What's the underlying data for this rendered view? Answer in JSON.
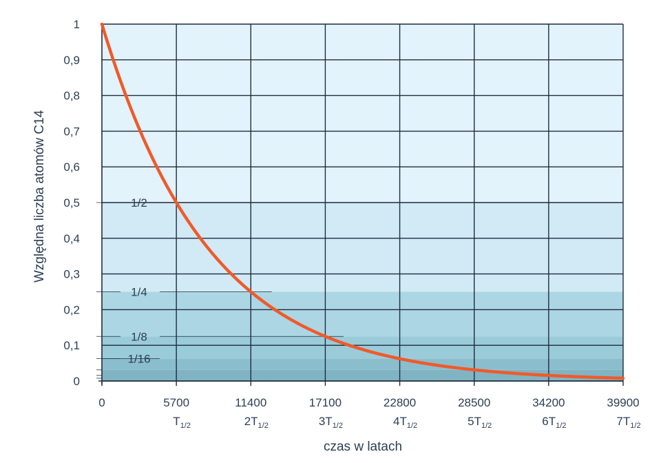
{
  "chart_data": {
    "type": "line",
    "xlabel": "czas w latach",
    "ylabel": "Względna liczba atomów C14",
    "xlim": [
      0,
      39900
    ],
    "ylim": [
      0,
      1
    ],
    "grid": true,
    "x_ticks": [
      {
        "value": 0,
        "label": "0",
        "sub_main": "",
        "sub_index": ""
      },
      {
        "value": 5700,
        "label": "5700",
        "sub_main": "T",
        "sub_index": "1/2"
      },
      {
        "value": 11400,
        "label": "11400",
        "sub_main": "2T",
        "sub_index": "1/2"
      },
      {
        "value": 17100,
        "label": "17100",
        "sub_main": "3T",
        "sub_index": "1/2"
      },
      {
        "value": 22800,
        "label": "22800",
        "sub_main": "4T",
        "sub_index": "1/2"
      },
      {
        "value": 28500,
        "label": "28500",
        "sub_main": "5T",
        "sub_index": "1/2"
      },
      {
        "value": 34200,
        "label": "34200",
        "sub_main": "6T",
        "sub_index": "1/2"
      },
      {
        "value": 39900,
        "label": "39900",
        "sub_main": "7T",
        "sub_index": "1/2"
      }
    ],
    "y_ticks": [
      {
        "value": 0,
        "label": "0"
      },
      {
        "value": 0.1,
        "label": "0,1"
      },
      {
        "value": 0.2,
        "label": "0,2"
      },
      {
        "value": 0.3,
        "label": "0,3"
      },
      {
        "value": 0.4,
        "label": "0,4"
      },
      {
        "value": 0.5,
        "label": "0,5"
      },
      {
        "value": 0.6,
        "label": "0,6"
      },
      {
        "value": 0.7,
        "label": "0,7"
      },
      {
        "value": 0.8,
        "label": "0,8"
      },
      {
        "value": 0.9,
        "label": "0,9"
      },
      {
        "value": 1,
        "label": "1"
      }
    ],
    "fraction_annotations": [
      {
        "value": 0.5,
        "label": "1/2",
        "x_end": 5700
      },
      {
        "value": 0.25,
        "label": "1/4",
        "x_end": 13000
      },
      {
        "value": 0.125,
        "label": "1/8",
        "x_end": 18500
      },
      {
        "value": 0.0625,
        "label": "1/16",
        "x_end": 0
      }
    ],
    "extra_levels": [
      0.03125,
      0.015625,
      0.0078125
    ],
    "bands": [
      {
        "from": 0.5,
        "to": 1,
        "color": "#e3f3fb"
      },
      {
        "from": 0.25,
        "to": 0.5,
        "color": "#d1eaf5"
      },
      {
        "from": 0.125,
        "to": 0.25,
        "color": "#acd6e3"
      },
      {
        "from": 0.0625,
        "to": 0.125,
        "color": "#9acbd9"
      },
      {
        "from": 0.03125,
        "to": 0.0625,
        "color": "#8bbecc"
      },
      {
        "from": 0,
        "to": 0.03125,
        "color": "#80b4c3"
      }
    ],
    "series": [
      {
        "half_life": 5700,
        "initial": 1,
        "color": "#f05a2a"
      }
    ],
    "colors": {
      "grid": "#1f2b3e",
      "text": "#2c3e55",
      "curve": "#f05a2a"
    }
  }
}
